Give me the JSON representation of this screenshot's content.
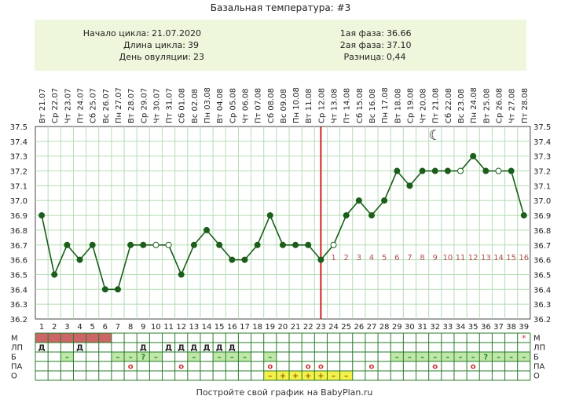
{
  "title": "Базальная температура: #3",
  "summary": {
    "cycle_start_label": "Начало цикла:",
    "cycle_start": "21.07.2020",
    "cycle_length_label": "Длина цикла:",
    "cycle_length": "39",
    "ovulation_day_label": "День овуляции:",
    "ovulation_day": "23",
    "phase1_label": "1ая фаза:",
    "phase1": "36.66",
    "phase2_label": "2ая фаза:",
    "phase2": "37.10",
    "difference_label": "Разница:",
    "difference": "0,44"
  },
  "footer": "Постройте свой график на BabyPlan.ru",
  "chart_data": {
    "type": "line",
    "title": "Базальная температура: #3",
    "ylim": [
      36.2,
      37.5
    ],
    "y_ticks": [
      "37.5",
      "37.4",
      "37.3",
      "37.2",
      "37.1",
      "37.0",
      "36.9",
      "36.8",
      "36.7",
      "36.6",
      "36.5",
      "36.4",
      "36.3",
      "36.2"
    ],
    "grid": true,
    "dates": [
      "Вт 21.07",
      "Ср 22.07",
      "Чт 23.07",
      "Пт 24.07",
      "Сб 25.07",
      "Вс 26.07",
      "Пн 27.07",
      "Вт 28.07",
      "Ср 29.07",
      "Чт 30.07",
      "Пт 31.07",
      "Сб 01.08",
      "Вс 02.08",
      "Пн 03.08",
      "Вт 04.08",
      "Ср 05.08",
      "Чт 06.08",
      "Пт 07.08",
      "Сб 08.08",
      "Вс 09.08",
      "Пн 10.08",
      "Вт 11.08",
      "Ср 12.08",
      "Чт 13.08",
      "Пт 14.08",
      "Сб 15.08",
      "Вс 16.08",
      "Пн 17.08",
      "Вт 18.08",
      "Ср 19.08",
      "Чт 20.08",
      "Пт 21.08",
      "Сб 22.08",
      "Вс 23.08",
      "Пн 24.08",
      "Вт 25.08",
      "Ср 26.08",
      "Чт 27.08",
      "Пт 28.08"
    ],
    "days": [
      1,
      2,
      3,
      4,
      5,
      6,
      7,
      8,
      9,
      10,
      11,
      12,
      13,
      14,
      15,
      16,
      17,
      18,
      19,
      20,
      21,
      22,
      23,
      24,
      25,
      26,
      27,
      28,
      29,
      30,
      31,
      32,
      33,
      34,
      35,
      36,
      37,
      38,
      39
    ],
    "values": [
      36.9,
      36.5,
      36.7,
      36.6,
      36.7,
      36.4,
      36.4,
      36.7,
      36.7,
      36.7,
      36.7,
      36.5,
      36.7,
      36.8,
      36.7,
      36.6,
      36.6,
      36.7,
      36.9,
      36.7,
      36.7,
      36.7,
      36.6,
      36.7,
      36.9,
      37.0,
      36.9,
      37.0,
      37.2,
      37.1,
      37.2,
      37.2,
      37.2,
      37.2,
      37.3,
      37.2,
      37.2,
      37.2,
      36.9
    ],
    "open_markers": [
      10,
      11,
      24,
      34,
      37
    ],
    "ovulation_day": 23,
    "post_ovulation_labels": [
      "1",
      "2",
      "3",
      "4",
      "5",
      "6",
      "7",
      "8",
      "9",
      "10",
      "11",
      "12",
      "13",
      "14",
      "15",
      "16"
    ],
    "moon_symbol": "☾",
    "moon_day": 32,
    "line_color": "#1a5e1a",
    "marker_color": "#1a5e1a",
    "ovulation_line_color": "#cc2222",
    "post_label_color": "#b05050",
    "table": {
      "rows": [
        "М",
        "ЛП",
        "Б",
        "ПА",
        "О"
      ],
      "menstruation_days": [
        1,
        2,
        3,
        4,
        5,
        6
      ],
      "menstruation_color": "#cc6666",
      "m_star_day": 39,
      "m_star_symbol": "*",
      "lp_marks": [
        {
          "day": 1,
          "text": "Д"
        },
        {
          "day": 4,
          "text": "Д"
        },
        {
          "day": 9,
          "text": "Д"
        },
        {
          "day": 11,
          "text": "Д"
        },
        {
          "day": 12,
          "text": "Д"
        },
        {
          "day": 13,
          "text": "Д"
        },
        {
          "day": 14,
          "text": "Д"
        },
        {
          "day": 15,
          "text": "Д"
        },
        {
          "day": 16,
          "text": "Д"
        }
      ],
      "b_marks": [
        {
          "day": 3,
          "text": "–"
        },
        {
          "day": 7,
          "text": "–"
        },
        {
          "day": 8,
          "text": "–"
        },
        {
          "day": 9,
          "text": "?"
        },
        {
          "day": 10,
          "text": "–"
        },
        {
          "day": 13,
          "text": "–"
        },
        {
          "day": 15,
          "text": "–"
        },
        {
          "day": 16,
          "text": "–"
        },
        {
          "day": 17,
          "text": "–"
        },
        {
          "day": 19,
          "text": "–"
        },
        {
          "day": 29,
          "text": "–"
        },
        {
          "day": 30,
          "text": "–"
        },
        {
          "day": 31,
          "text": "–"
        },
        {
          "day": 32,
          "text": "–"
        },
        {
          "day": 33,
          "text": "–"
        },
        {
          "day": 34,
          "text": "–"
        },
        {
          "day": 35,
          "text": "–"
        },
        {
          "day": 36,
          "text": "?"
        },
        {
          "day": 37,
          "text": "–"
        },
        {
          "day": 38,
          "text": "–"
        },
        {
          "day": 39,
          "text": "–"
        }
      ],
      "pa_marks": [
        {
          "day": 8,
          "text": "о"
        },
        {
          "day": 12,
          "text": "о"
        },
        {
          "day": 19,
          "text": "о"
        },
        {
          "day": 22,
          "text": "о"
        },
        {
          "day": 23,
          "text": "о"
        },
        {
          "day": 27,
          "text": "о"
        },
        {
          "day": 32,
          "text": "о"
        },
        {
          "day": 35,
          "text": "о"
        }
      ],
      "o_marks": [
        {
          "day": 19,
          "text": "–"
        },
        {
          "day": 20,
          "text": "+"
        },
        {
          "day": 21,
          "text": "+"
        },
        {
          "day": 22,
          "text": "+"
        },
        {
          "day": 23,
          "text": "+"
        },
        {
          "day": 24,
          "text": "–"
        },
        {
          "day": 25,
          "text": "–"
        }
      ],
      "mark_green": "#bfe8a8",
      "mark_yellow": "#f5f04a",
      "mark_text_color": "#228822",
      "o_text_color": "#8a6a00",
      "pa_text_color": "#cc3333"
    }
  }
}
